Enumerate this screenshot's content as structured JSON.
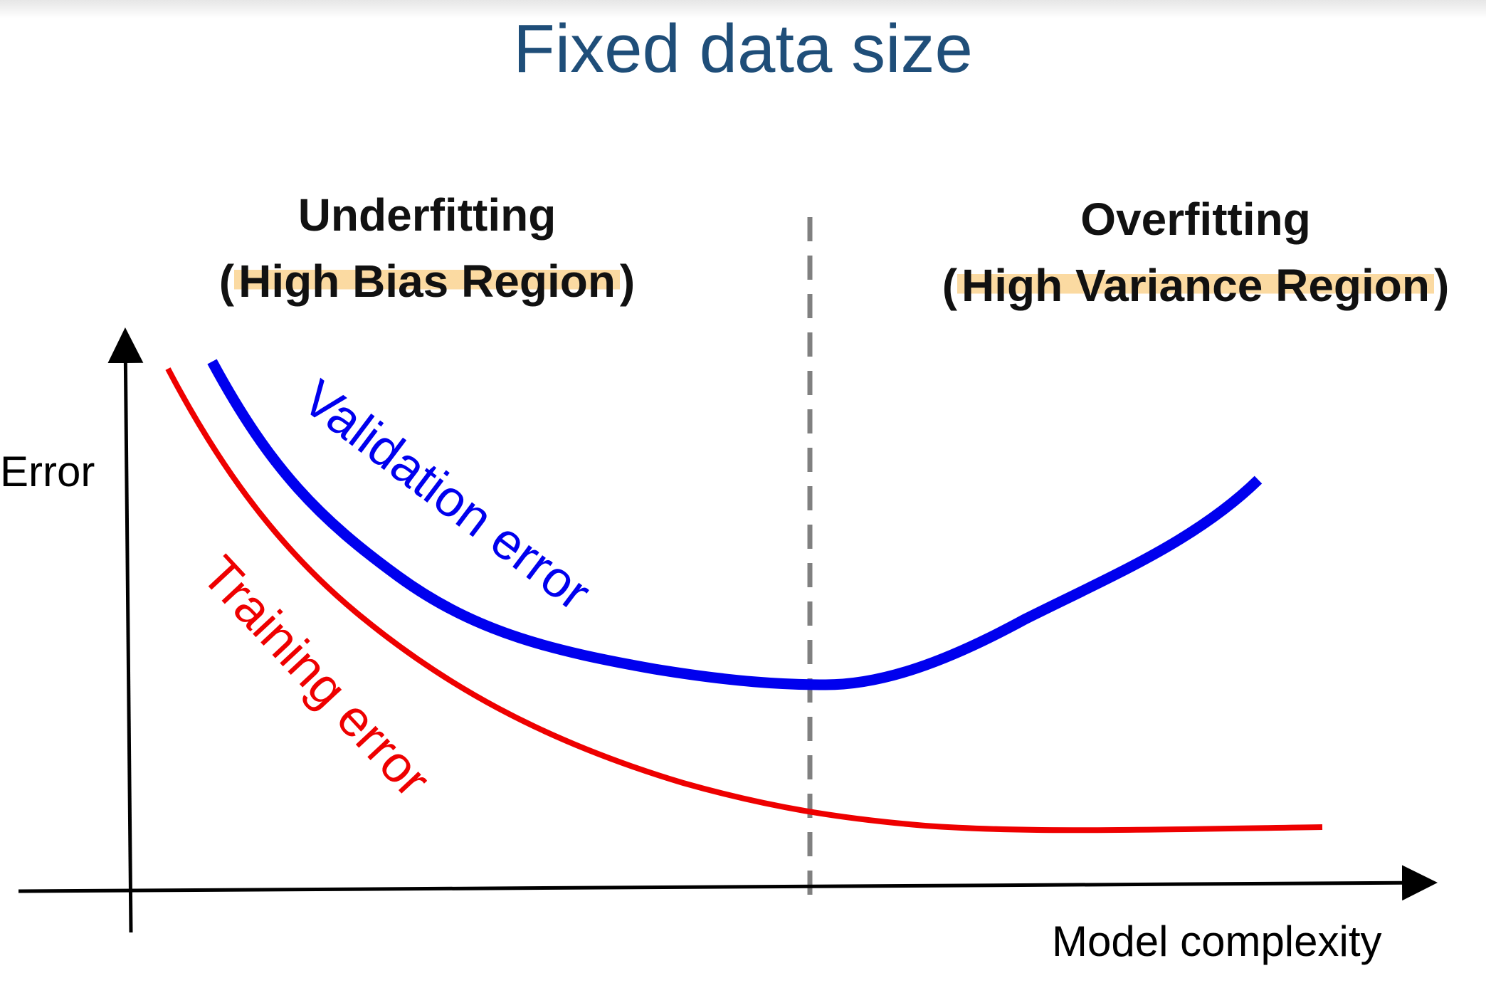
{
  "title": "Fixed data size",
  "regions": {
    "underfitting": {
      "title": "Underfitting",
      "subtitle": "High Bias Region"
    },
    "overfitting": {
      "title": "Overfitting",
      "subtitle": "High Variance Region"
    }
  },
  "axes": {
    "ylabel": "Error",
    "xlabel": "Model complexity"
  },
  "curves": {
    "validation": {
      "label": "Validation error",
      "color": "#0000ee"
    },
    "training": {
      "label": "Training error",
      "color": "#ee0000"
    }
  },
  "colors": {
    "title": "#1f4e79",
    "highlight": "#facd82",
    "divider": "#808080",
    "axis": "#000000"
  }
}
